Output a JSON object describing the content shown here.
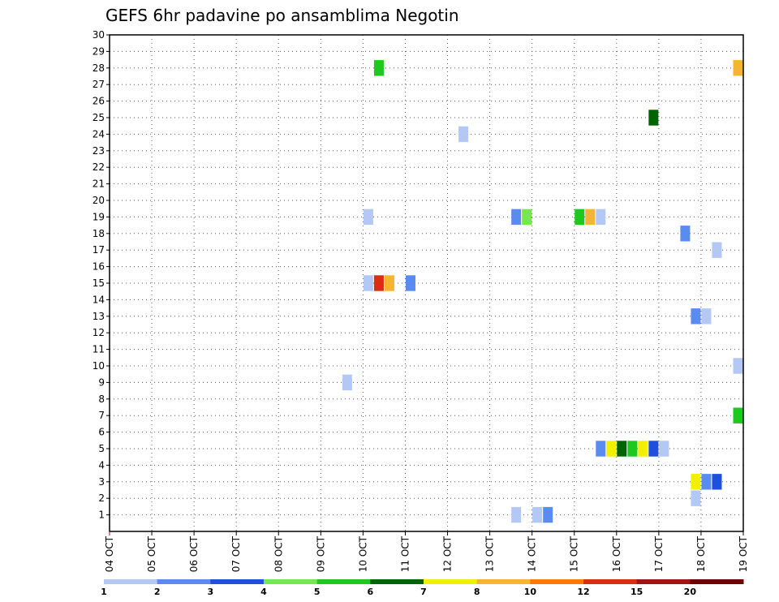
{
  "chart_data": {
    "type": "heatmap",
    "title": "GEFS 6hr padavine po ansamblima Negotin",
    "xlabel": "",
    "ylabel": "",
    "x_ticks": [
      "04 OCT",
      "05 OCT",
      "06 OCT",
      "07 OCT",
      "08 OCT",
      "09 OCT",
      "10 OCT",
      "11 OCT",
      "12 OCT",
      "13 OCT",
      "14 OCT",
      "15 OCT",
      "16 OCT",
      "17 OCT",
      "18 OCT",
      "19 OCT"
    ],
    "y_ticks": [
      "1",
      "2",
      "3",
      "4",
      "5",
      "6",
      "7",
      "8",
      "9",
      "10",
      "11",
      "12",
      "13",
      "14",
      "15",
      "16",
      "17",
      "18",
      "19",
      "20",
      "21",
      "22",
      "23",
      "24",
      "25",
      "26",
      "27",
      "28",
      "29",
      "30"
    ],
    "xlim": [
      "04 OCT 00",
      "19 OCT 00"
    ],
    "ylim": [
      0,
      30
    ],
    "grid": true,
    "time_step_hours": 6,
    "colorbar": {
      "labels": [
        "1",
        "2",
        "3",
        "4",
        "5",
        "6",
        "7",
        "8",
        "10",
        "12",
        "15",
        "20"
      ],
      "colors": [
        "#b4c8f5",
        "#5a8cf0",
        "#1e50dc",
        "#78e650",
        "#1ec81e",
        "#006400",
        "#f0f000",
        "#f5b432",
        "#ff7800",
        "#dc2d14",
        "#a01414",
        "#6e0000"
      ]
    },
    "cells": [
      {
        "member": 28,
        "time": "10 OCT 06",
        "bin": 5
      },
      {
        "member": 28,
        "time": "18 OCT 18",
        "bin": 8
      },
      {
        "member": 25,
        "time": "16 OCT 18",
        "bin": 6
      },
      {
        "member": 24,
        "time": "12 OCT 06",
        "bin": 1
      },
      {
        "member": 19,
        "time": "10 OCT 00",
        "bin": 1
      },
      {
        "member": 19,
        "time": "13 OCT 12",
        "bin": 2
      },
      {
        "member": 19,
        "time": "13 OCT 18",
        "bin": 4
      },
      {
        "member": 19,
        "time": "15 OCT 00",
        "bin": 5
      },
      {
        "member": 19,
        "time": "15 OCT 06",
        "bin": 8
      },
      {
        "member": 19,
        "time": "15 OCT 12",
        "bin": 1
      },
      {
        "member": 18,
        "time": "17 OCT 12",
        "bin": 2
      },
      {
        "member": 17,
        "time": "18 OCT 06",
        "bin": 1
      },
      {
        "member": 15,
        "time": "10 OCT 00",
        "bin": 1
      },
      {
        "member": 15,
        "time": "10 OCT 06",
        "bin": 10
      },
      {
        "member": 15,
        "time": "10 OCT 12",
        "bin": 8
      },
      {
        "member": 15,
        "time": "11 OCT 00",
        "bin": 2
      },
      {
        "member": 13,
        "time": "17 OCT 18",
        "bin": 2
      },
      {
        "member": 13,
        "time": "18 OCT 00",
        "bin": 1
      },
      {
        "member": 10,
        "time": "18 OCT 18",
        "bin": 1
      },
      {
        "member": 9,
        "time": "09 OCT 12",
        "bin": 1
      },
      {
        "member": 7,
        "time": "18 OCT 18",
        "bin": 5
      },
      {
        "member": 5,
        "time": "15 OCT 12",
        "bin": 2
      },
      {
        "member": 5,
        "time": "15 OCT 18",
        "bin": 7
      },
      {
        "member": 5,
        "time": "16 OCT 00",
        "bin": 6
      },
      {
        "member": 5,
        "time": "16 OCT 06",
        "bin": 5
      },
      {
        "member": 5,
        "time": "16 OCT 12",
        "bin": 7
      },
      {
        "member": 5,
        "time": "16 OCT 18",
        "bin": 3
      },
      {
        "member": 5,
        "time": "17 OCT 00",
        "bin": 1
      },
      {
        "member": 3,
        "time": "17 OCT 18",
        "bin": 7
      },
      {
        "member": 3,
        "time": "18 OCT 00",
        "bin": 2
      },
      {
        "member": 3,
        "time": "18 OCT 06",
        "bin": 3
      },
      {
        "member": 2,
        "time": "17 OCT 18",
        "bin": 1
      },
      {
        "member": 1,
        "time": "13 OCT 12",
        "bin": 1
      },
      {
        "member": 1,
        "time": "14 OCT 00",
        "bin": 1
      },
      {
        "member": 1,
        "time": "14 OCT 06",
        "bin": 2
      }
    ]
  }
}
